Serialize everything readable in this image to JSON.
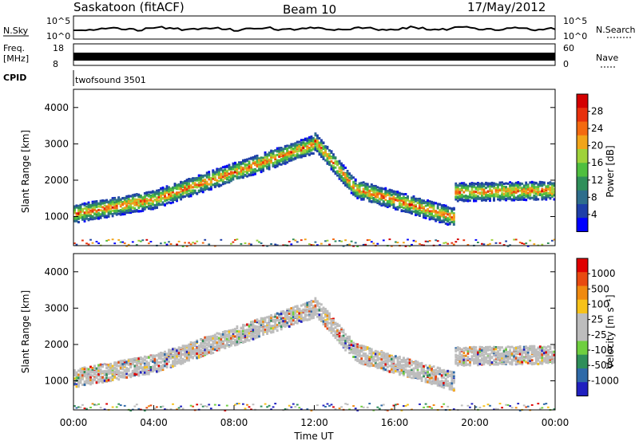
{
  "header": {
    "station": "Saskatoon (fitACF)",
    "beam": "Beam 10",
    "date": "17/May/2012"
  },
  "top_panels": {
    "nsky_label": "N.Sky",
    "nsky_ticks": [
      "10^5",
      "10^0"
    ],
    "nsearch_label": "N.Search",
    "nsearch_ticks": [
      "10^5",
      "10^0"
    ],
    "freq_label_1": "Freq.",
    "freq_label_2": "[MHz]",
    "freq_ticks": [
      "18",
      "8"
    ],
    "nave_label": "Nave",
    "nave_ticks": [
      "60",
      "0"
    ],
    "cpid_label": "CPID",
    "cpid_value": "twofsound 3501"
  },
  "chart_data": [
    {
      "type": "heatmap",
      "name": "power",
      "ylabel": "Slant Range [km]",
      "yticks": [
        1000,
        2000,
        3000,
        4000
      ],
      "ylim": [
        200,
        4500
      ],
      "colorbar_label": "Power [dB]",
      "colorbar_ticks": [
        4,
        8,
        12,
        16,
        20,
        24,
        28
      ],
      "colors": [
        "#0000ff",
        "#1e3fa8",
        "#2e6e8c",
        "#2f8f5a",
        "#4fbf3f",
        "#9fd23a",
        "#f2a51a",
        "#f46a10",
        "#e8300c",
        "#d40000"
      ]
    },
    {
      "type": "heatmap",
      "name": "velocity",
      "ylabel": "Slant Range [km]",
      "yticks": [
        1000,
        2000,
        3000,
        4000
      ],
      "ylim": [
        200,
        4500
      ],
      "xlabel": "Time UT",
      "xticks": [
        "00:00",
        "04:00",
        "08:00",
        "12:00",
        "16:00",
        "20:00",
        "00:00"
      ],
      "colorbar_label": "Velocity [m s⁻¹]",
      "colorbar_ticks": [
        "1000",
        "500",
        "100",
        "25",
        "-25",
        "-100",
        "-500",
        "-1000"
      ],
      "colors": [
        "#2020c0",
        "#2f6aa8",
        "#2f8f5a",
        "#6fcf3f",
        "#bdbdbd",
        "#bdbdbd",
        "#f7c21a",
        "#f08a10",
        "#e84a10",
        "#e00000"
      ]
    }
  ]
}
